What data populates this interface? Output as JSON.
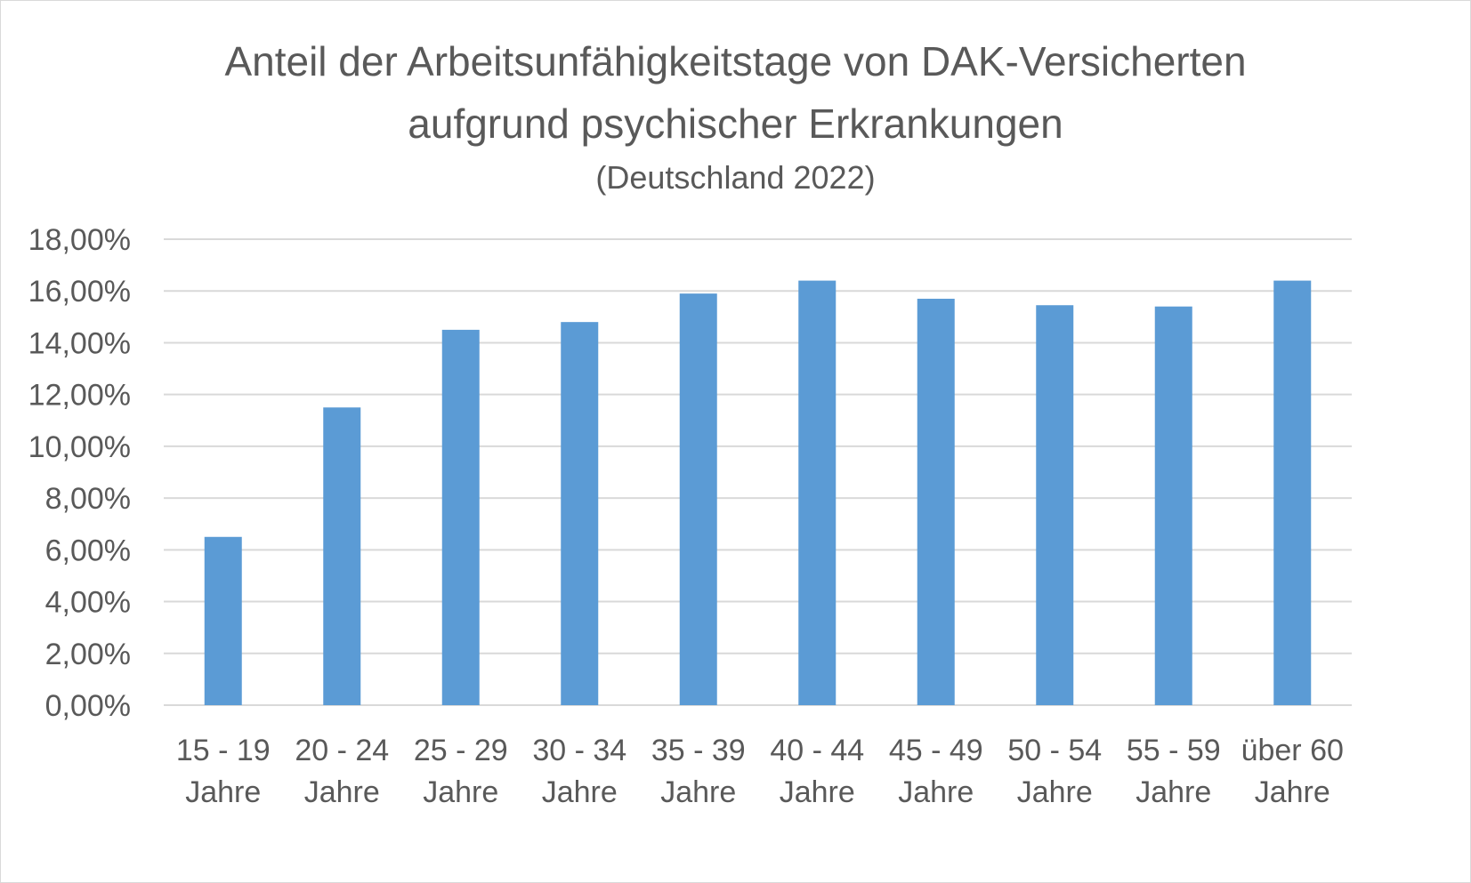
{
  "chart_data": {
    "type": "bar",
    "title_line1": "Anteil der Arbeitsunfähigkeitstage von DAK-Versicherten",
    "title_line2": "aufgrund psychischer Erkrankungen",
    "subtitle": "(Deutschland 2022)",
    "categories": [
      [
        "15 - 19",
        "Jahre"
      ],
      [
        "20 - 24",
        "Jahre"
      ],
      [
        "25 - 29",
        "Jahre"
      ],
      [
        "30 - 34",
        "Jahre"
      ],
      [
        "35 - 39",
        "Jahre"
      ],
      [
        "40 - 44",
        "Jahre"
      ],
      [
        "45 - 49",
        "Jahre"
      ],
      [
        "50 - 54",
        "Jahre"
      ],
      [
        "55 - 59",
        "Jahre"
      ],
      [
        "über 60",
        "Jahre"
      ]
    ],
    "values": [
      6.5,
      11.5,
      14.5,
      14.8,
      15.9,
      16.4,
      15.7,
      15.45,
      15.4,
      16.4
    ],
    "yticks": [
      "0,00%",
      "2,00%",
      "4,00%",
      "6,00%",
      "8,00%",
      "10,00%",
      "12,00%",
      "14,00%",
      "16,00%",
      "18,00%"
    ],
    "ylim": [
      0,
      18
    ],
    "ystep": 2,
    "grid": true,
    "bar_color": "#5b9bd5",
    "grid_color": "#d9d9d9",
    "text_color": "#595959"
  }
}
